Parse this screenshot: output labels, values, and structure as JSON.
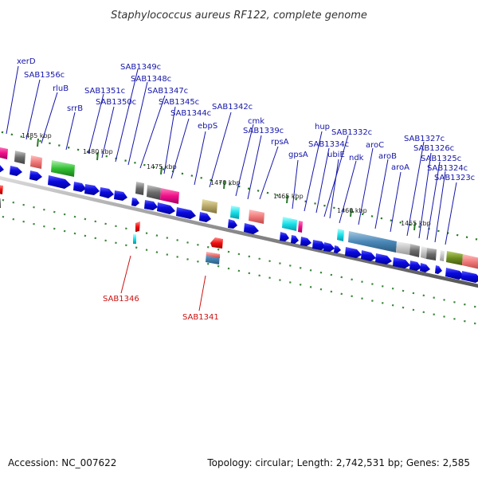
{
  "title": "Staphylococcus aureus RF122, complete genome",
  "footer": {
    "accession": "Accession: NC_007622",
    "summary": "Topology: circular; Length: 2,742,531 bp; Genes: 2,585"
  },
  "colors": {
    "forward_gene": "#1010e6",
    "label_forward": "#1515aa",
    "label_reverse": "#cc1111",
    "backbone": "#888888",
    "tick": "#2a7a2a"
  },
  "ticks": [
    {
      "label": "1485 kbp"
    },
    {
      "label": "1480 kbp"
    },
    {
      "label": "1475 kbp"
    },
    {
      "label": "1470 kbp"
    },
    {
      "label": "1465 kbp"
    },
    {
      "label": "1460 kbp"
    },
    {
      "label": "1455 kbp"
    }
  ],
  "forward_labels": [
    {
      "text": "xerD"
    },
    {
      "text": "SAB1356c"
    },
    {
      "text": "rluB"
    },
    {
      "text": "srrB"
    },
    {
      "text": "SAB1351c"
    },
    {
      "text": "SAB1350c"
    },
    {
      "text": "SAB1349c"
    },
    {
      "text": "SAB1348c"
    },
    {
      "text": "SAB1347c"
    },
    {
      "text": "SAB1345c"
    },
    {
      "text": "SAB1344c"
    },
    {
      "text": "ebpS"
    },
    {
      "text": "SAB1342c"
    },
    {
      "text": "cmk"
    },
    {
      "text": "SAB1339c"
    },
    {
      "text": "rpsA"
    },
    {
      "text": "gpsA"
    },
    {
      "text": "hup"
    },
    {
      "text": "SAB1334c"
    },
    {
      "text": "SAB1332c"
    },
    {
      "text": "ubiE"
    },
    {
      "text": "ndk"
    },
    {
      "text": "aroC"
    },
    {
      "text": "aroB"
    },
    {
      "text": "aroA"
    },
    {
      "text": "SAB1327c"
    },
    {
      "text": "SAB1326c"
    },
    {
      "text": "SAB1325c"
    },
    {
      "text": "SAB1324c"
    },
    {
      "text": "SAB1323c"
    }
  ],
  "reverse_labels": [
    {
      "text": "SAB1346"
    },
    {
      "text": "SAB1341"
    }
  ]
}
